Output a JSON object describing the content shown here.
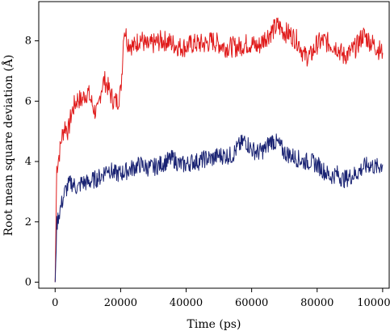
{
  "chart_data": {
    "type": "line",
    "title": "",
    "xlabel": "Time (ps)",
    "ylabel": "Root mean square deviation (Å)",
    "xlim": [
      -5000,
      102000
    ],
    "ylim": [
      -0.2,
      9.3
    ],
    "xticks": [
      0,
      20000,
      40000,
      60000,
      80000,
      100000
    ],
    "yticks": [
      0,
      2,
      4,
      6,
      8
    ],
    "grid": false,
    "legend": "none",
    "series": [
      {
        "color": "#e01b1b",
        "x": [
          0,
          500,
          1000,
          1500,
          2000,
          3000,
          4000,
          5000,
          6000,
          7000,
          8000,
          9000,
          10000,
          11000,
          12000,
          13000,
          14000,
          15000,
          16000,
          17000,
          18000,
          19000,
          20000,
          20500,
          21000,
          21500,
          22000,
          23000,
          24000,
          26000,
          28000,
          30000,
          32000,
          34000,
          36000,
          38000,
          40000,
          42000,
          44000,
          46000,
          48000,
          50000,
          52000,
          54000,
          56000,
          58000,
          60000,
          62000,
          64000,
          66000,
          68000,
          70000,
          72000,
          74000,
          75000,
          76000,
          78000,
          80000,
          82000,
          84000,
          86000,
          88000,
          90000,
          92000,
          94000,
          96000,
          98000,
          100000
        ],
        "y": [
          0,
          3.8,
          4.1,
          4.4,
          4.8,
          5.2,
          5.0,
          5.6,
          5.9,
          6.1,
          6.0,
          6.2,
          6.3,
          6.0,
          5.7,
          5.6,
          6.4,
          6.7,
          6.5,
          6.2,
          6.0,
          6.0,
          6.3,
          7.2,
          8.4,
          8.3,
          8.0,
          7.9,
          7.8,
          8.1,
          7.8,
          7.9,
          8.0,
          8.0,
          7.9,
          7.8,
          7.8,
          7.9,
          7.9,
          7.9,
          8.0,
          7.9,
          7.8,
          7.8,
          7.8,
          7.9,
          7.9,
          7.8,
          8.1,
          8.3,
          8.5,
          8.3,
          8.2,
          8.0,
          7.8,
          7.5,
          7.5,
          7.9,
          8.0,
          7.9,
          7.8,
          7.5,
          7.6,
          7.8,
          8.2,
          8.0,
          7.8,
          7.6
        ]
      },
      {
        "color": "#1a2373",
        "x": [
          0,
          500,
          1000,
          1500,
          2000,
          3000,
          4000,
          5000,
          6000,
          7000,
          8000,
          10000,
          12000,
          14000,
          16000,
          18000,
          20000,
          22000,
          24000,
          26000,
          28000,
          30000,
          32000,
          34000,
          36000,
          38000,
          40000,
          42000,
          44000,
          46000,
          48000,
          50000,
          52000,
          54000,
          56000,
          58000,
          60000,
          62000,
          64000,
          66000,
          68000,
          70000,
          72000,
          74000,
          76000,
          78000,
          80000,
          82000,
          84000,
          86000,
          88000,
          90000,
          92000,
          94000,
          96000,
          98000,
          100000
        ],
        "y": [
          0,
          1.9,
          2.2,
          2.4,
          2.6,
          3.0,
          3.2,
          3.3,
          3.2,
          3.1,
          3.3,
          3.3,
          3.4,
          3.5,
          3.8,
          3.6,
          3.6,
          3.7,
          3.8,
          3.9,
          3.8,
          3.8,
          3.9,
          4.0,
          4.1,
          3.9,
          3.9,
          4.0,
          4.0,
          4.1,
          4.1,
          4.2,
          4.2,
          4.2,
          4.5,
          4.7,
          4.4,
          4.3,
          4.4,
          4.7,
          4.6,
          4.3,
          4.2,
          4.1,
          4.0,
          4.0,
          3.9,
          3.7,
          3.5,
          3.6,
          3.4,
          3.5,
          3.6,
          3.8,
          3.9,
          3.8,
          3.9
        ]
      }
    ]
  }
}
